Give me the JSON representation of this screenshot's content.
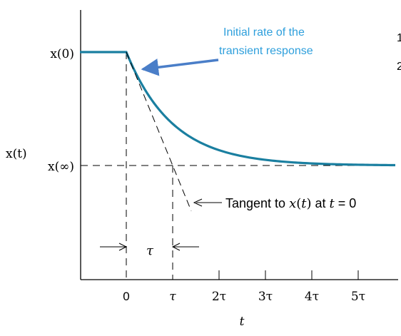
{
  "chart_data": {
    "type": "line",
    "title": "",
    "xlabel": "t",
    "ylabel": "x(t)",
    "x_ticks": [
      "0",
      "τ",
      "2τ",
      "3τ",
      "4τ",
      "5τ"
    ],
    "y_ticks": [
      "x(0)",
      "x(∞)"
    ],
    "x_range_tau": [
      -1,
      5.8
    ],
    "series": [
      {
        "curve": "first-order exponential decay",
        "y_initial": 1,
        "y_final": 0,
        "decay_start_t_tau": 0,
        "time_constant_tau": 1
      }
    ],
    "tangent": {
      "slope_per_tau": -1,
      "extends_to_t_tau": 1.4
    },
    "tau_marker": {
      "from_t_tau": 0,
      "to_t_tau": 1,
      "label": "τ"
    },
    "annotations": {
      "initial_rate_line1": "Initial rate of the",
      "initial_rate_line2": "transient response",
      "tangent_prefix": "Tangent to ",
      "tangent_x": "x",
      "tangent_paren_t1": "(",
      "tangent_t1": "t",
      "tangent_paren_t1_close": ")",
      "tangent_at": " at ",
      "tangent_t2": "t",
      "tangent_eq": " = 0"
    },
    "colors": {
      "curve": "#1a7fa0",
      "callout_text": "#2e9fdc",
      "callout_arrow": "#4a7ec8",
      "axes": "#000000"
    }
  },
  "edge_glyphs": [
    "1",
    "2"
  ]
}
